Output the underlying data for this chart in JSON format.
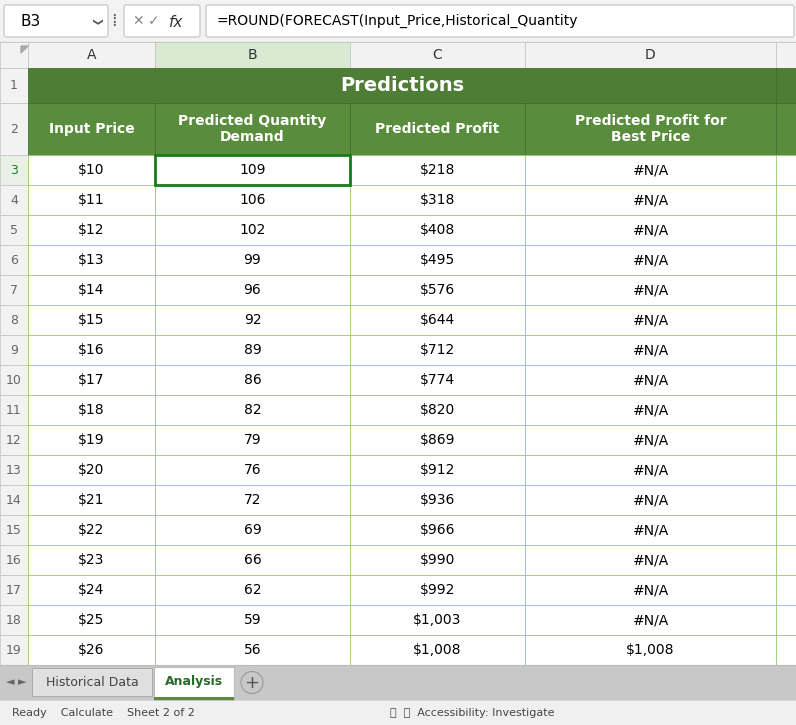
{
  "title": "Predictions",
  "formula_bar_cell": "B3",
  "formula_bar_text": "=ROUND(FORECAST(Input_Price,Historical_Quantity",
  "col_letters": [
    "A",
    "B",
    "C",
    "D"
  ],
  "headers": [
    "Input Price",
    "Predicted Quantity\nDemand",
    "Predicted Profit",
    "Predicted Profit for\nBest Price"
  ],
  "input_prices": [
    "$10",
    "$11",
    "$12",
    "$13",
    "$14",
    "$15",
    "$16",
    "$17",
    "$18",
    "$19",
    "$20",
    "$21",
    "$22",
    "$23",
    "$24",
    "$25",
    "$26"
  ],
  "pred_qty": [
    109,
    106,
    102,
    99,
    96,
    92,
    89,
    86,
    82,
    79,
    76,
    72,
    69,
    66,
    62,
    59,
    56
  ],
  "pred_profit": [
    "$218",
    "$318",
    "$408",
    "$495",
    "$576",
    "$644",
    "$712",
    "$774",
    "$820",
    "$869",
    "$912",
    "$936",
    "$966",
    "$990",
    "$992",
    "$1,003",
    "$1,008"
  ],
  "pred_profit_best": [
    "#N/A",
    "#N/A",
    "#N/A",
    "#N/A",
    "#N/A",
    "#N/A",
    "#N/A",
    "#N/A",
    "#N/A",
    "#N/A",
    "#N/A",
    "#N/A",
    "#N/A",
    "#N/A",
    "#N/A",
    "#N/A",
    "$1,008"
  ],
  "header_bg_color": "#5a8c3e",
  "header_text_color": "#ffffff",
  "title_bg_color": "#4e7d35",
  "grid_line_color": "#8dc85a",
  "selected_cell_border": "#1a7a1a",
  "row_num_color": "#666666",
  "row_num_selected_color": "#2a7a2a",
  "col_header_bg": "#f2f2f2",
  "col_header_selected_bg": "#d9ead3",
  "col_header_border": "#c0c0c0",
  "row_header_bg": "#f2f2f2",
  "row_header_selected_bg": "#e8f0e8",
  "row_header_border": "#c0c0c0",
  "formula_bar_bg": "#ffffff",
  "toolbar_bg": "#f3f3f3",
  "na_color": "#000000",
  "tab_active_text": "#2a6a2a",
  "tab_inactive_text": "#444444",
  "overall_bg": "#c8c8c8",
  "sheet_bg": "#ffffff",
  "status_bar_bg": "#f0f0f0"
}
